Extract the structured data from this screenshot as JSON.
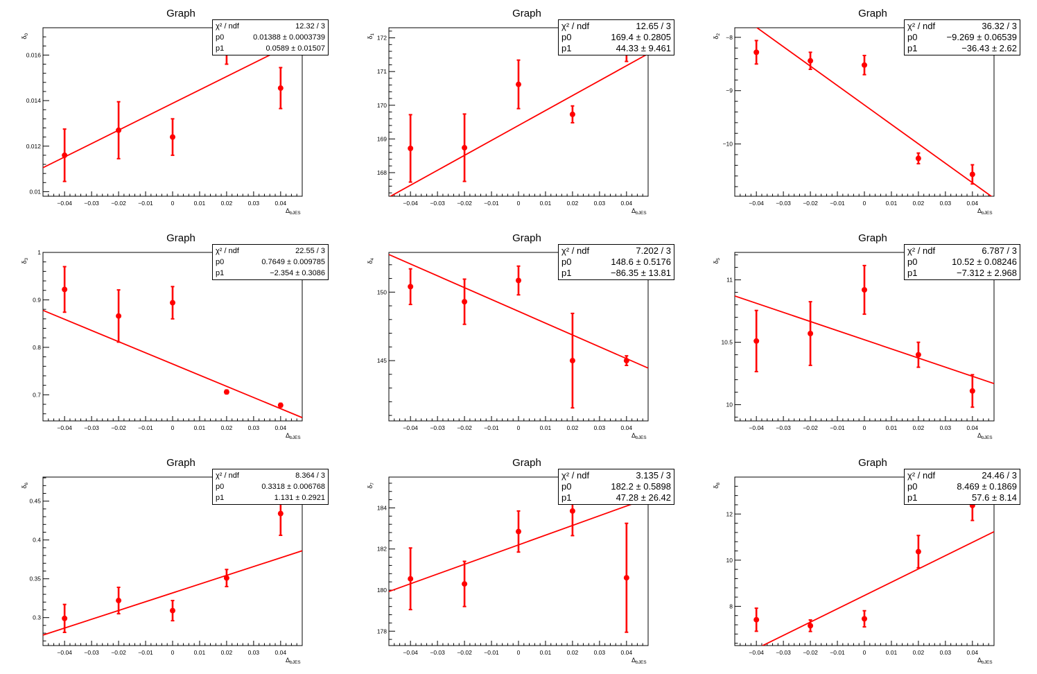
{
  "page": {
    "background": "#ffffff",
    "marker_color": "#ff0000",
    "axis_color": "#000000"
  },
  "chart_data": [
    {
      "type": "scatter",
      "title": "Graph",
      "xlabel": "Δ_bJES",
      "ylabel": "δ_0",
      "xlim": [
        -0.048,
        0.048
      ],
      "ylim": [
        0.0098,
        0.0172
      ],
      "x_ticks": [
        "-0.04",
        "-0.03",
        "-0.02",
        "-0.01",
        "0",
        "0.01",
        "0.02",
        "0.03",
        "0.04"
      ],
      "y_ticks": [
        "0.01",
        "0.012",
        "0.014",
        "0.016"
      ],
      "y_tick_values": [
        0.01,
        0.012,
        0.014,
        0.016
      ],
      "points": [
        {
          "x": -0.04,
          "y": 0.0116,
          "err": 0.00115
        },
        {
          "x": -0.02,
          "y": 0.0127,
          "err": 0.00125
        },
        {
          "x": 0.0,
          "y": 0.0124,
          "err": 0.0008
        },
        {
          "x": 0.02,
          "y": 0.0161,
          "err": 0.0005
        },
        {
          "x": 0.04,
          "y": 0.01455,
          "err": 0.0009
        }
      ],
      "fit": {
        "p0": 0.01388,
        "p1": 0.0589
      },
      "stats": {
        "chi2_label": "χ² / ndf",
        "chi2": "12.32 / 3",
        "p0": "0.01388 ± 0.0003739",
        "p1": "0.0589 ± 0.01507"
      },
      "stats_size": "small"
    },
    {
      "type": "scatter",
      "title": "Graph",
      "xlabel": "Δ_bJES",
      "ylabel": "δ_1",
      "xlim": [
        -0.048,
        0.048
      ],
      "ylim": [
        167.3,
        172.3
      ],
      "x_ticks": [
        "-0.04",
        "-0.03",
        "-0.02",
        "-0.01",
        "0",
        "0.01",
        "0.02",
        "0.03",
        "0.04"
      ],
      "y_ticks": [
        "168",
        "169",
        "170",
        "171",
        "172"
      ],
      "y_tick_values": [
        168,
        169,
        170,
        171,
        172
      ],
      "points": [
        {
          "x": -0.04,
          "y": 168.72,
          "err": 1.0
        },
        {
          "x": -0.02,
          "y": 168.74,
          "err": 1.0
        },
        {
          "x": 0.0,
          "y": 170.62,
          "err": 0.72
        },
        {
          "x": 0.02,
          "y": 169.73,
          "err": 0.25
        },
        {
          "x": 0.04,
          "y": 171.6,
          "err": 0.3
        }
      ],
      "fit": {
        "p0": 169.4,
        "p1": 44.33
      },
      "stats": {
        "chi2_label": "χ² / ndf",
        "chi2": "12.65 / 3",
        "p0": "169.4 ± 0.2805",
        "p1": "44.33 ± 9.461"
      },
      "stats_size": "large"
    },
    {
      "type": "scatter",
      "title": "Graph",
      "xlabel": "Δ_bJES",
      "ylabel": "δ_2",
      "xlim": [
        -0.048,
        0.048
      ],
      "ylim": [
        -10.98,
        -7.82
      ],
      "x_ticks": [
        "-0.04",
        "-0.03",
        "-0.02",
        "-0.01",
        "0",
        "0.01",
        "0.02",
        "0.03",
        "0.04"
      ],
      "y_ticks": [
        "-10",
        "-9",
        "-8"
      ],
      "y_tick_values": [
        -10,
        -9,
        -8
      ],
      "points": [
        {
          "x": -0.04,
          "y": -8.28,
          "err": 0.22
        },
        {
          "x": -0.02,
          "y": -8.44,
          "err": 0.16
        },
        {
          "x": 0.0,
          "y": -8.52,
          "err": 0.18
        },
        {
          "x": 0.02,
          "y": -10.27,
          "err": 0.1
        },
        {
          "x": 0.04,
          "y": -10.57,
          "err": 0.18
        }
      ],
      "fit": {
        "p0": -9.269,
        "p1": -36.43
      },
      "stats": {
        "chi2_label": "χ² / ndf",
        "chi2": "36.32 / 3",
        "p0": "−9.269 ± 0.06539",
        "p1": "−36.43 ±  2.62"
      },
      "stats_size": "large"
    },
    {
      "type": "scatter",
      "title": "Graph",
      "xlabel": "Δ_bJES",
      "ylabel": "δ_3",
      "xlim": [
        -0.048,
        0.048
      ],
      "ylim": [
        0.645,
        1.0
      ],
      "x_ticks": [
        "-0.04",
        "-0.03",
        "-0.02",
        "-0.01",
        "0",
        "0.01",
        "0.02",
        "0.03",
        "0.04"
      ],
      "y_ticks": [
        "0.7",
        "0.8",
        "0.9",
        "1"
      ],
      "y_tick_values": [
        0.7,
        0.8,
        0.9,
        1.0
      ],
      "points": [
        {
          "x": -0.04,
          "y": 0.922,
          "err": 0.048
        },
        {
          "x": -0.02,
          "y": 0.866,
          "err": 0.055
        },
        {
          "x": 0.0,
          "y": 0.894,
          "err": 0.034
        },
        {
          "x": 0.02,
          "y": 0.706,
          "err": 0.004
        },
        {
          "x": 0.04,
          "y": 0.678,
          "err": 0.004
        }
      ],
      "fit": {
        "p0": 0.7649,
        "p1": -2.354
      },
      "stats": {
        "chi2_label": "χ² / ndf",
        "chi2": "22.55 / 3",
        "p0": "0.7649 ± 0.009785",
        "p1": "−2.354 ± 0.3086"
      },
      "stats_size": "small"
    },
    {
      "type": "scatter",
      "title": "Graph",
      "xlabel": "Δ_bJES",
      "ylabel": "δ_4",
      "xlim": [
        -0.048,
        0.048
      ],
      "ylim": [
        140.6,
        152.9
      ],
      "x_ticks": [
        "-0.04",
        "-0.03",
        "-0.02",
        "-0.01",
        "0",
        "0.01",
        "0.02",
        "0.03",
        "0.04"
      ],
      "y_ticks": [
        "145",
        "150"
      ],
      "y_tick_values": [
        145,
        150
      ],
      "points": [
        {
          "x": -0.04,
          "y": 150.4,
          "err": 1.3
        },
        {
          "x": -0.02,
          "y": 149.3,
          "err": 1.65
        },
        {
          "x": 0.0,
          "y": 150.85,
          "err": 1.05
        },
        {
          "x": 0.02,
          "y": 145.0,
          "err": 3.45
        },
        {
          "x": 0.04,
          "y": 145.0,
          "err": 0.35
        }
      ],
      "fit": {
        "p0": 148.6,
        "p1": -86.35
      },
      "stats": {
        "chi2_label": "χ² / ndf",
        "chi2": "7.202 / 3",
        "p0": "148.6 ± 0.5176",
        "p1": "−86.35 ± 13.81"
      },
      "stats_size": "large"
    },
    {
      "type": "scatter",
      "title": "Graph",
      "xlabel": "Δ_bJES",
      "ylabel": "δ_5",
      "xlim": [
        -0.048,
        0.048
      ],
      "ylim": [
        9.87,
        11.22
      ],
      "x_ticks": [
        "-0.04",
        "-0.03",
        "-0.02",
        "-0.01",
        "0",
        "0.01",
        "0.02",
        "0.03",
        "0.04"
      ],
      "y_ticks": [
        "10",
        "10.5",
        "11"
      ],
      "y_tick_values": [
        10,
        10.5,
        11
      ],
      "points": [
        {
          "x": -0.04,
          "y": 10.51,
          "err": 0.245
        },
        {
          "x": -0.02,
          "y": 10.57,
          "err": 0.255
        },
        {
          "x": 0.0,
          "y": 10.92,
          "err": 0.195
        },
        {
          "x": 0.02,
          "y": 10.4,
          "err": 0.1
        },
        {
          "x": 0.04,
          "y": 10.11,
          "err": 0.13
        }
      ],
      "fit": {
        "p0": 10.52,
        "p1": -7.312
      },
      "stats": {
        "chi2_label": "χ² / ndf",
        "chi2": "6.787 / 3",
        "p0": "10.52 ± 0.08246",
        "p1": "−7.312 ± 2.968"
      },
      "stats_size": "large"
    },
    {
      "type": "scatter",
      "title": "Graph",
      "xlabel": "Δ_bJES",
      "ylabel": "δ_6",
      "xlim": [
        -0.048,
        0.048
      ],
      "ylim": [
        0.264,
        0.481
      ],
      "x_ticks": [
        "-0.04",
        "-0.03",
        "-0.02",
        "-0.01",
        "0",
        "0.01",
        "0.02",
        "0.03",
        "0.04"
      ],
      "y_ticks": [
        "0.3",
        "0.35",
        "0.4",
        "0.45"
      ],
      "y_tick_values": [
        0.3,
        0.35,
        0.4,
        0.45
      ],
      "points": [
        {
          "x": -0.04,
          "y": 0.299,
          "err": 0.018
        },
        {
          "x": -0.02,
          "y": 0.322,
          "err": 0.017
        },
        {
          "x": 0.0,
          "y": 0.309,
          "err": 0.013
        },
        {
          "x": 0.02,
          "y": 0.351,
          "err": 0.011
        },
        {
          "x": 0.04,
          "y": 0.434,
          "err": 0.028
        }
      ],
      "fit": {
        "p0": 0.3318,
        "p1": 1.131
      },
      "stats": {
        "chi2_label": "χ² / ndf",
        "chi2": "8.364 / 3",
        "p0": "0.3318 ± 0.006768",
        "p1": "1.131 ± 0.2921"
      },
      "stats_size": "small"
    },
    {
      "type": "scatter",
      "title": "Graph",
      "xlabel": "Δ_bJES",
      "ylabel": "δ_7",
      "xlim": [
        -0.048,
        0.048
      ],
      "ylim": [
        177.3,
        185.5
      ],
      "x_ticks": [
        "-0.04",
        "-0.03",
        "-0.02",
        "-0.01",
        "0",
        "0.01",
        "0.02",
        "0.03",
        "0.04"
      ],
      "y_ticks": [
        "178",
        "180",
        "182",
        "184"
      ],
      "y_tick_values": [
        178,
        180,
        182,
        184
      ],
      "points": [
        {
          "x": -0.04,
          "y": 180.55,
          "err": 1.5
        },
        {
          "x": -0.02,
          "y": 180.3,
          "err": 1.1
        },
        {
          "x": 0.0,
          "y": 182.85,
          "err": 1.0
        },
        {
          "x": 0.02,
          "y": 183.85,
          "err": 1.2
        },
        {
          "x": 0.04,
          "y": 180.6,
          "err": 2.65
        }
      ],
      "fit": {
        "p0": 182.2,
        "p1": 47.28
      },
      "stats": {
        "chi2_label": "χ² / ndf",
        "chi2": "3.135 / 3",
        "p0": "182.2 ± 0.5898",
        "p1": "47.28 ± 26.42"
      },
      "stats_size": "large"
    },
    {
      "type": "scatter",
      "title": "Graph",
      "xlabel": "Δ_bJES",
      "ylabel": "δ_8",
      "xlim": [
        -0.048,
        0.048
      ],
      "ylim": [
        6.3,
        13.6
      ],
      "x_ticks": [
        "-0.04",
        "-0.03",
        "-0.02",
        "-0.01",
        "0",
        "0.01",
        "0.02",
        "0.03",
        "0.04"
      ],
      "y_ticks": [
        "8",
        "10",
        "12"
      ],
      "y_tick_values": [
        8,
        10,
        12
      ],
      "points": [
        {
          "x": -0.04,
          "y": 7.42,
          "err": 0.5
        },
        {
          "x": -0.02,
          "y": 7.16,
          "err": 0.25
        },
        {
          "x": 0.0,
          "y": 7.46,
          "err": 0.35
        },
        {
          "x": 0.02,
          "y": 10.37,
          "err": 0.7
        },
        {
          "x": 0.04,
          "y": 12.37,
          "err": 0.65
        }
      ],
      "fit": {
        "p0": 8.469,
        "p1": 57.6
      },
      "stats": {
        "chi2_label": "χ² / ndf",
        "chi2": "24.46 / 3",
        "p0": "8.469 ± 0.1869",
        "p1": "57.6 ±  8.14"
      },
      "stats_size": "large"
    }
  ]
}
